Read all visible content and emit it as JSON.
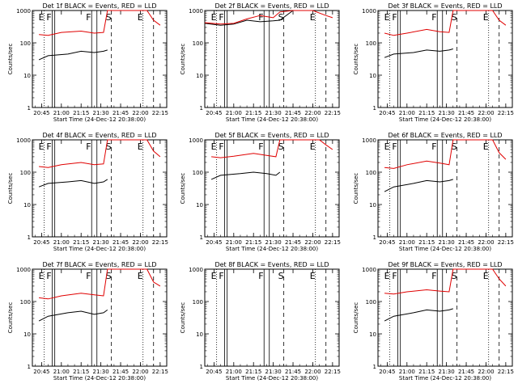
{
  "colors": {
    "events": "#000000",
    "lld": "#e00000",
    "axes": "#000000",
    "background": "#ffffff"
  },
  "chart_data": [
    {
      "type": "line",
      "title": "Det 1f BLACK = Events, RED = LLD",
      "ylabel": "Counts/sec",
      "xlabel": "Start Time (24-Dec-12 20:38:00)",
      "y_scale": "log",
      "ylim": [
        1,
        1000
      ],
      "yticks": [
        "1",
        "10",
        "100",
        "1000"
      ],
      "xticks": [
        "20:45",
        "21:00",
        "21:15",
        "21:30",
        "21:45",
        "22:00",
        "22:15"
      ],
      "markers": [
        "E",
        "F",
        "F",
        "S",
        "E"
      ],
      "series": [
        {
          "name": "BLACK = Events",
          "points": [
            [
              "20:43",
              30
            ],
            [
              "20:50",
              40
            ],
            [
              "21:05",
              45
            ],
            [
              "21:15",
              55
            ],
            [
              "21:25",
              50
            ],
            [
              "21:32",
              55
            ],
            [
              "21:35",
              60
            ]
          ]
        },
        {
          "name": "RED = LLD",
          "points": [
            [
              "20:43",
              180
            ],
            [
              "20:50",
              170
            ],
            [
              "21:00",
              210
            ],
            [
              "21:15",
              230
            ],
            [
              "21:25",
              200
            ],
            [
              "21:32",
              210
            ],
            [
              "21:35",
              1000
            ],
            [
              "22:05",
              1000
            ],
            [
              "22:10",
              500
            ],
            [
              "22:15",
              350
            ]
          ]
        }
      ]
    },
    {
      "type": "line",
      "title": "Det 2f BLACK = Events, RED = LLD",
      "ylabel": "Counts/sec",
      "xlabel": "Start Time (24-Dec-12 20:38:00)",
      "y_scale": "log",
      "ylim": [
        1,
        1000
      ],
      "yticks": [
        "1",
        "10",
        "100",
        "1000"
      ],
      "xticks": [
        "20:45",
        "21:00",
        "21:15",
        "21:30",
        "21:45",
        "22:00",
        "22:15"
      ],
      "markers": [
        "E",
        "F",
        "F",
        "S",
        "E"
      ],
      "series": [
        {
          "name": "BLACK = Events",
          "points": [
            [
              "20:38",
              400
            ],
            [
              "20:50",
              350
            ],
            [
              "21:00",
              380
            ],
            [
              "21:10",
              500
            ],
            [
              "21:20",
              450
            ],
            [
              "21:30",
              480
            ],
            [
              "21:35",
              500
            ],
            [
              "21:45",
              1000
            ]
          ]
        },
        {
          "name": "RED = LLD",
          "points": [
            [
              "20:38",
              420
            ],
            [
              "20:50",
              380
            ],
            [
              "21:00",
              400
            ],
            [
              "21:10",
              550
            ],
            [
              "21:20",
              700
            ],
            [
              "21:30",
              600
            ],
            [
              "21:35",
              900
            ],
            [
              "21:45",
              1000
            ],
            [
              "22:00",
              1000
            ],
            [
              "22:10",
              700
            ],
            [
              "22:15",
              600
            ]
          ]
        }
      ]
    },
    {
      "type": "line",
      "title": "Det 3f BLACK = Events, RED = LLD",
      "ylabel": "Counts/sec",
      "xlabel": "Start Time (24-Dec-12 20:38:00)",
      "y_scale": "log",
      "ylim": [
        1,
        1000
      ],
      "yticks": [
        "1",
        "10",
        "100",
        "1000"
      ],
      "xticks": [
        "20:45",
        "21:00",
        "21:15",
        "21:30",
        "21:45",
        "22:00",
        "22:15"
      ],
      "markers": [
        "E",
        "F",
        "F",
        "S",
        "E"
      ],
      "series": [
        {
          "name": "BLACK = Events",
          "points": [
            [
              "20:43",
              35
            ],
            [
              "20:50",
              45
            ],
            [
              "21:05",
              50
            ],
            [
              "21:15",
              60
            ],
            [
              "21:25",
              55
            ],
            [
              "21:32",
              60
            ],
            [
              "21:35",
              65
            ]
          ]
        },
        {
          "name": "RED = LLD",
          "points": [
            [
              "20:43",
              200
            ],
            [
              "20:50",
              170
            ],
            [
              "21:00",
              200
            ],
            [
              "21:15",
              260
            ],
            [
              "21:25",
              220
            ],
            [
              "21:32",
              210
            ],
            [
              "21:35",
              1000
            ],
            [
              "22:05",
              1000
            ],
            [
              "22:10",
              500
            ],
            [
              "22:15",
              350
            ]
          ]
        }
      ]
    },
    {
      "type": "line",
      "title": "Det 4f BLACK = Events, RED = LLD",
      "ylabel": "Counts/sec",
      "xlabel": "Start Time (24-Dec-12 20:38:00)",
      "y_scale": "log",
      "ylim": [
        1,
        1000
      ],
      "yticks": [
        "1",
        "10",
        "100",
        "1000"
      ],
      "xticks": [
        "20:45",
        "21:00",
        "21:15",
        "21:30",
        "21:45",
        "22:00",
        "22:15"
      ],
      "markers": [
        "E",
        "F",
        "F",
        "S",
        "E"
      ],
      "series": [
        {
          "name": "BLACK = Events",
          "points": [
            [
              "20:43",
              35
            ],
            [
              "20:50",
              45
            ],
            [
              "21:05",
              50
            ],
            [
              "21:15",
              55
            ],
            [
              "21:25",
              45
            ],
            [
              "21:32",
              50
            ],
            [
              "21:35",
              60
            ]
          ]
        },
        {
          "name": "RED = LLD",
          "points": [
            [
              "20:43",
              150
            ],
            [
              "20:50",
              140
            ],
            [
              "21:00",
              170
            ],
            [
              "21:15",
              200
            ],
            [
              "21:25",
              170
            ],
            [
              "21:32",
              180
            ],
            [
              "21:35",
              1000
            ],
            [
              "22:05",
              1000
            ],
            [
              "22:10",
              450
            ],
            [
              "22:15",
              300
            ]
          ]
        }
      ]
    },
    {
      "type": "line",
      "title": "Det 5f BLACK = Events, RED = LLD",
      "ylabel": "Counts/sec",
      "xlabel": "Start Time (24-Dec-12 20:38:00)",
      "y_scale": "log",
      "ylim": [
        1,
        1000
      ],
      "yticks": [
        "1",
        "10",
        "100",
        "1000"
      ],
      "xticks": [
        "20:45",
        "21:00",
        "21:15",
        "21:30",
        "21:45",
        "22:00",
        "22:15"
      ],
      "markers": [
        "E",
        "F",
        "F",
        "S",
        "E"
      ],
      "series": [
        {
          "name": "BLACK = Events",
          "points": [
            [
              "20:43",
              60
            ],
            [
              "20:50",
              80
            ],
            [
              "21:05",
              90
            ],
            [
              "21:15",
              100
            ],
            [
              "21:25",
              90
            ],
            [
              "21:32",
              80
            ],
            [
              "21:35",
              100
            ]
          ]
        },
        {
          "name": "RED = LLD",
          "points": [
            [
              "20:43",
              300
            ],
            [
              "20:50",
              280
            ],
            [
              "21:00",
              310
            ],
            [
              "21:15",
              380
            ],
            [
              "21:25",
              330
            ],
            [
              "21:32",
              300
            ],
            [
              "21:35",
              1000
            ],
            [
              "22:05",
              1000
            ],
            [
              "22:10",
              700
            ],
            [
              "22:15",
              500
            ]
          ]
        }
      ]
    },
    {
      "type": "line",
      "title": "Det 6f BLACK = Events, RED = LLD",
      "ylabel": "Counts/sec",
      "xlabel": "Start Time (24-Dec-12 20:38:00)",
      "y_scale": "log",
      "ylim": [
        1,
        1000
      ],
      "yticks": [
        "1",
        "10",
        "100",
        "1000"
      ],
      "xticks": [
        "20:45",
        "21:00",
        "21:15",
        "21:30",
        "21:45",
        "22:00",
        "22:15"
      ],
      "markers": [
        "E",
        "F",
        "F",
        "S",
        "E"
      ],
      "series": [
        {
          "name": "BLACK = Events",
          "points": [
            [
              "20:43",
              25
            ],
            [
              "20:50",
              35
            ],
            [
              "21:05",
              45
            ],
            [
              "21:15",
              55
            ],
            [
              "21:25",
              50
            ],
            [
              "21:32",
              55
            ],
            [
              "21:35",
              60
            ]
          ]
        },
        {
          "name": "RED = LLD",
          "points": [
            [
              "20:43",
              140
            ],
            [
              "20:50",
              130
            ],
            [
              "21:00",
              170
            ],
            [
              "21:15",
              220
            ],
            [
              "21:25",
              190
            ],
            [
              "21:32",
              170
            ],
            [
              "21:35",
              1000
            ],
            [
              "22:05",
              1000
            ],
            [
              "22:10",
              400
            ],
            [
              "22:15",
              250
            ]
          ]
        }
      ]
    },
    {
      "type": "line",
      "title": "Det 7f BLACK = Events, RED = LLD",
      "ylabel": "Counts/sec",
      "xlabel": "Start Time (24-Dec-12 20:38:00)",
      "y_scale": "log",
      "ylim": [
        1,
        1000
      ],
      "yticks": [
        "1",
        "10",
        "100",
        "1000"
      ],
      "xticks": [
        "20:45",
        "21:00",
        "21:15",
        "21:30",
        "21:45",
        "22:00",
        "22:15"
      ],
      "markers": [
        "E",
        "F",
        "F",
        "S",
        "E"
      ],
      "series": [
        {
          "name": "BLACK = Events",
          "points": [
            [
              "20:43",
              25
            ],
            [
              "20:50",
              35
            ],
            [
              "21:05",
              45
            ],
            [
              "21:15",
              50
            ],
            [
              "21:25",
              40
            ],
            [
              "21:32",
              45
            ],
            [
              "21:35",
              55
            ]
          ]
        },
        {
          "name": "RED = LLD",
          "points": [
            [
              "20:43",
              130
            ],
            [
              "20:50",
              120
            ],
            [
              "21:00",
              150
            ],
            [
              "21:15",
              180
            ],
            [
              "21:25",
              160
            ],
            [
              "21:32",
              150
            ],
            [
              "21:35",
              1000
            ],
            [
              "22:05",
              1000
            ],
            [
              "22:10",
              400
            ],
            [
              "22:15",
              300
            ]
          ]
        }
      ]
    },
    {
      "type": "line",
      "title": "Det 8f BLACK = Events, RED = LLD",
      "ylabel": "Counts/sec",
      "xlabel": "Start Time (24-Dec-12 20:38:00)",
      "y_scale": "log",
      "ylim": [
        1,
        1000
      ],
      "yticks": [
        "1",
        "10",
        "100",
        "1000"
      ],
      "xticks": [
        "20:45",
        "21:00",
        "21:15",
        "21:30",
        "21:45",
        "22:00",
        "22:15"
      ],
      "markers": [
        "E",
        "F",
        "F",
        "S",
        "E"
      ],
      "series": []
    },
    {
      "type": "line",
      "title": "Det 9f BLACK = Events, RED = LLD",
      "ylabel": "Counts/sec",
      "xlabel": "Start Time (24-Dec-12 20:38:00)",
      "y_scale": "log",
      "ylim": [
        1,
        1000
      ],
      "yticks": [
        "1",
        "10",
        "100",
        "1000"
      ],
      "xticks": [
        "20:45",
        "21:00",
        "21:15",
        "21:30",
        "21:45",
        "22:00",
        "22:15"
      ],
      "markers": [
        "E",
        "F",
        "F",
        "S",
        "E"
      ],
      "series": [
        {
          "name": "BLACK = Events",
          "points": [
            [
              "20:43",
              25
            ],
            [
              "20:50",
              35
            ],
            [
              "21:05",
              45
            ],
            [
              "21:15",
              55
            ],
            [
              "21:25",
              50
            ],
            [
              "21:32",
              55
            ],
            [
              "21:35",
              60
            ]
          ]
        },
        {
          "name": "RED = LLD",
          "points": [
            [
              "20:43",
              180
            ],
            [
              "20:50",
              170
            ],
            [
              "21:00",
              200
            ],
            [
              "21:15",
              230
            ],
            [
              "21:25",
              210
            ],
            [
              "21:32",
              200
            ],
            [
              "21:35",
              1000
            ],
            [
              "22:05",
              1000
            ],
            [
              "22:10",
              500
            ],
            [
              "22:15",
              300
            ]
          ]
        }
      ]
    }
  ]
}
